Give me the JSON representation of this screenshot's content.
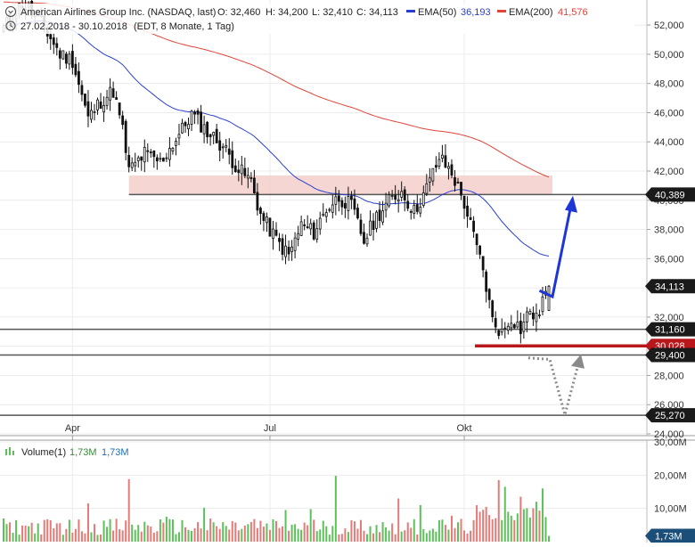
{
  "header": {
    "title": "American Airlines Group Inc. (NASDAQ, last)",
    "open": "O: 32,460",
    "high": "H: 34,200",
    "low": "L: 32,410",
    "close": "C: 34,113",
    "ema50_label": "EMA(50)",
    "ema50_value": "36,193",
    "ema200_label": "EMA(200)",
    "ema200_value": "41,576",
    "date_range": "27.02.2018 - 30.10.2018",
    "meta": "(EDT, 8 Monate, 1 Tag)"
  },
  "volume_header": {
    "label": "Volume(1)",
    "value1": "1,73M",
    "value2": "1,73M"
  },
  "colors": {
    "ema50": "#2a3fd1",
    "ema200": "#e0453a",
    "arrow_up": "#1d36d6",
    "support_red": "#b8171c",
    "zone_fill": "#f2c8c4",
    "vol_up": "#5ec05b",
    "vol_down": "#e57b78",
    "tag_dark": "#1a1a1a",
    "tag_blue": "#1b4f7a"
  },
  "chart_data": [
    {
      "type": "candlestick",
      "title": "American Airlines Group Inc. (NASDAQ, last)",
      "x_ticks": [
        "Apr",
        "Jul",
        "Okt"
      ],
      "y_ticks": [
        "24,000",
        "26,000",
        "28,000",
        "30,000",
        "32,000",
        "34,000",
        "36,000",
        "38,000",
        "40,000",
        "42,000",
        "44,000",
        "46,000",
        "48,000",
        "50,000",
        "52,000"
      ],
      "ylim": [
        24,
        52.8
      ],
      "grid": true,
      "series": [
        {
          "name": "American Airlines Group Inc. (NASDAQ, last)",
          "kind": "price",
          "ohlc_last": {
            "open": 32.46,
            "high": 34.2,
            "low": 32.41,
            "close": 34.113
          }
        },
        {
          "name": "EMA(50)",
          "kind": "line",
          "last": 36.193
        },
        {
          "name": "EMA(200)",
          "kind": "line",
          "last": 41.576
        }
      ],
      "levels": [
        {
          "label": "40,389",
          "value": 40.389,
          "style": "dark"
        },
        {
          "label": "31,160",
          "value": 31.16,
          "style": "dark"
        },
        {
          "label": "30,028",
          "value": 30.028,
          "style": "red"
        },
        {
          "label": "29,400",
          "value": 29.4,
          "style": "dark"
        },
        {
          "label": "25,270",
          "value": 25.27,
          "style": "dark"
        }
      ],
      "current_price_label": "34,113",
      "current_price": 34.113,
      "resistance_zone": [
        40.4,
        41.7
      ]
    },
    {
      "type": "bar",
      "title": "Volume(1)",
      "y_ticks": [
        "10,00M",
        "20,00M",
        "30,00M"
      ],
      "ylim": [
        0,
        30
      ],
      "current_label": "1,73M",
      "current_value": 1.73
    }
  ]
}
